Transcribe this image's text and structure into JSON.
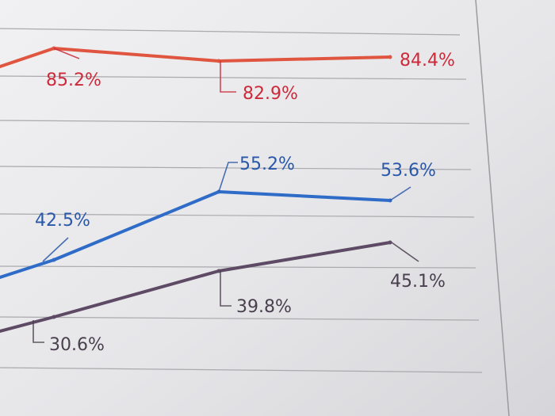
{
  "chart_data": {
    "type": "line",
    "categories": [
      "",
      "",
      "",
      ""
    ],
    "ylim": [
      25,
      90
    ],
    "grid": true,
    "series": [
      {
        "color": "#e0553f",
        "label_color": "#cc2a3a",
        "values": [
          null,
          85.2,
          82.9,
          84.4
        ],
        "labels": [
          "",
          "85.2%",
          "82.9%",
          "84.4%"
        ]
      },
      {
        "color": "#2f6cc8",
        "label_color": "#2a58a8",
        "values": [
          null,
          42.5,
          55.2,
          53.6
        ],
        "labels": [
          "",
          "42.5%",
          "55.2%",
          "53.6%"
        ]
      },
      {
        "color": "#5e4a64",
        "label_color": "#4a3f4e",
        "values": [
          null,
          30.6,
          39.8,
          45.1
        ],
        "labels": [
          "",
          "30.6%",
          "39.8%",
          "45.1%"
        ]
      }
    ]
  }
}
